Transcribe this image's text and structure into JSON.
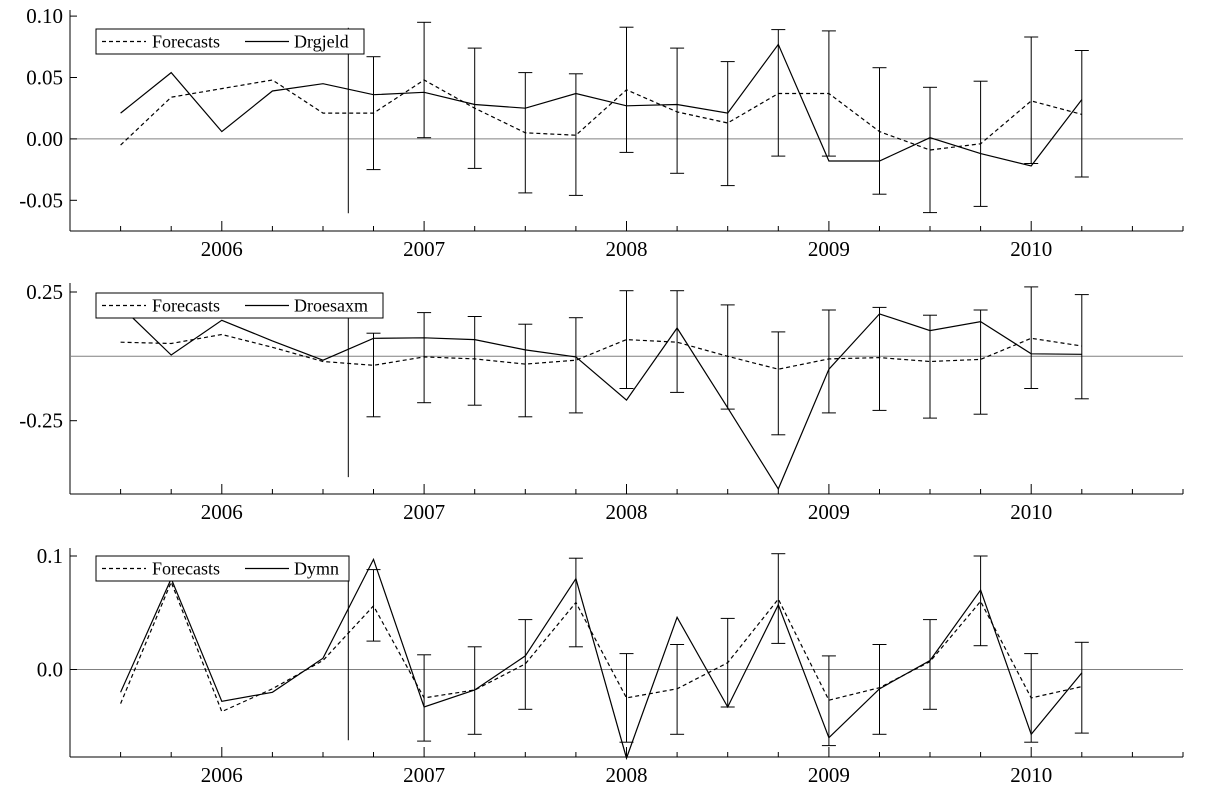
{
  "chart_data": [
    {
      "type": "line",
      "title": "",
      "xlabel": "",
      "ylabel": "",
      "xlim": [
        2005.25,
        2010.75
      ],
      "ylim": [
        -0.075,
        0.105
      ],
      "yticks": [
        0.1,
        0.05,
        0.0,
        -0.05
      ],
      "ytick_labels": [
        "0.10",
        "0.05",
        "0.00",
        "-0.05"
      ],
      "xticks": [
        2006,
        2007,
        2008,
        2009,
        2010
      ],
      "xtick_labels": [
        "2006",
        "2007",
        "2008",
        "2009",
        "2010"
      ],
      "zero_line": 0,
      "forecast_origin": 2006.625,
      "legend": {
        "position": "top-left",
        "entries": [
          "Forecasts",
          "Drgjeld"
        ]
      },
      "series": [
        {
          "name": "Forecasts",
          "style": "dashed",
          "x": [
            2005.5,
            2005.75,
            2006.0,
            2006.25,
            2006.5,
            2006.75,
            2007.0,
            2007.25,
            2007.5,
            2007.75,
            2008.0,
            2008.25,
            2008.5,
            2008.75,
            2009.0,
            2009.25,
            2009.5,
            2009.75,
            2010.0,
            2010.25
          ],
          "y": [
            -0.005,
            0.034,
            0.041,
            0.048,
            0.021,
            0.021,
            0.048,
            0.025,
            0.005,
            0.003,
            0.04,
            0.022,
            0.013,
            0.037,
            0.037,
            0.006,
            -0.009,
            -0.004,
            0.031,
            0.02
          ]
        },
        {
          "name": "Drgjeld",
          "style": "solid",
          "x": [
            2005.5,
            2005.75,
            2006.0,
            2006.25,
            2006.5,
            2006.75,
            2007.0,
            2007.25,
            2007.5,
            2007.75,
            2008.0,
            2008.25,
            2008.5,
            2008.75,
            2009.0,
            2009.25,
            2009.5,
            2009.75,
            2010.0,
            2010.25
          ],
          "y": [
            0.021,
            0.054,
            0.006,
            0.039,
            0.045,
            0.036,
            0.038,
            0.028,
            0.025,
            0.037,
            0.027,
            0.028,
            0.021,
            0.077,
            -0.018,
            -0.018,
            0.001,
            -0.012,
            -0.022,
            0.032
          ]
        }
      ],
      "error_bars": {
        "x": [
          2006.75,
          2007.0,
          2007.25,
          2007.5,
          2007.75,
          2008.0,
          2008.25,
          2008.5,
          2008.75,
          2009.0,
          2009.25,
          2009.5,
          2009.75,
          2010.0,
          2010.25
        ],
        "low": [
          -0.025,
          0.001,
          -0.024,
          -0.044,
          -0.046,
          -0.011,
          -0.028,
          -0.038,
          -0.014,
          -0.014,
          -0.045,
          -0.06,
          -0.055,
          -0.02,
          -0.031
        ],
        "high": [
          0.067,
          0.095,
          0.074,
          0.054,
          0.053,
          0.091,
          0.074,
          0.063,
          0.089,
          0.088,
          0.058,
          0.042,
          0.047,
          0.083,
          0.072
        ]
      }
    },
    {
      "type": "line",
      "title": "",
      "xlabel": "",
      "ylabel": "",
      "xlim": [
        2005.25,
        2010.75
      ],
      "ylim": [
        -0.535,
        0.285
      ],
      "yticks": [
        0.25,
        -0.25
      ],
      "ytick_labels": [
        "0.25",
        "-0.25"
      ],
      "xticks": [
        2006,
        2007,
        2008,
        2009,
        2010
      ],
      "xtick_labels": [
        "2006",
        "2007",
        "2008",
        "2009",
        "2010"
      ],
      "zero_line": 0,
      "forecast_origin": 2006.625,
      "legend": {
        "position": "top-left",
        "entries": [
          "Forecasts",
          "Droesaxm"
        ]
      },
      "series": [
        {
          "name": "Forecasts",
          "style": "dashed",
          "x": [
            2005.5,
            2005.75,
            2006.0,
            2006.25,
            2006.5,
            2006.75,
            2007.0,
            2007.25,
            2007.5,
            2007.75,
            2008.0,
            2008.25,
            2008.5,
            2008.75,
            2009.0,
            2009.25,
            2009.5,
            2009.75,
            2010.0,
            2010.25
          ],
          "y": [
            0.055,
            0.05,
            0.085,
            0.035,
            -0.02,
            -0.035,
            -0.002,
            -0.01,
            -0.03,
            -0.015,
            0.065,
            0.055,
            0.0,
            -0.05,
            -0.01,
            -0.005,
            -0.02,
            -0.012,
            0.07,
            0.04
          ]
        },
        {
          "name": "Droesaxm",
          "style": "solid",
          "x": [
            2005.5,
            2005.75,
            2006.0,
            2006.25,
            2006.5,
            2006.75,
            2007.0,
            2007.25,
            2007.5,
            2007.75,
            2008.0,
            2008.25,
            2008.5,
            2008.75,
            2009.0,
            2009.25,
            2009.5,
            2009.75,
            2010.0,
            2010.25
          ],
          "y": [
            0.195,
            0.005,
            0.14,
            0.06,
            -0.015,
            0.07,
            0.072,
            0.065,
            0.025,
            -0.002,
            -0.17,
            0.11,
            -0.2,
            -0.515,
            -0.05,
            0.165,
            0.1,
            0.135,
            0.01,
            0.008
          ]
        }
      ],
      "error_bars": {
        "x": [
          2006.75,
          2007.0,
          2007.25,
          2007.5,
          2007.75,
          2008.0,
          2008.25,
          2008.5,
          2008.75,
          2009.0,
          2009.25,
          2009.5,
          2009.75,
          2010.0,
          2010.25
        ],
        "low": [
          -0.235,
          -0.18,
          -0.19,
          -0.235,
          -0.22,
          -0.125,
          -0.14,
          -0.205,
          -0.305,
          -0.22,
          -0.21,
          -0.24,
          -0.225,
          -0.125,
          -0.165
        ],
        "high": [
          0.09,
          0.17,
          0.155,
          0.125,
          0.15,
          0.255,
          0.255,
          0.2,
          0.095,
          0.18,
          0.19,
          0.16,
          0.18,
          0.27,
          0.24
        ]
      }
    },
    {
      "type": "line",
      "title": "",
      "xlabel": "",
      "ylabel": "",
      "xlim": [
        2005.25,
        2010.75
      ],
      "ylim": [
        -0.077,
        0.107
      ],
      "yticks": [
        0.1,
        0.0
      ],
      "ytick_labels": [
        "0.1",
        "0.0"
      ],
      "xticks": [
        2006,
        2007,
        2008,
        2009,
        2010
      ],
      "xtick_labels": [
        "2006",
        "2007",
        "2008",
        "2009",
        "2010"
      ],
      "zero_line": 0,
      "forecast_origin": 2006.625,
      "legend": {
        "position": "top-left",
        "entries": [
          "Forecasts",
          "Dymn"
        ]
      },
      "series": [
        {
          "name": "Forecasts",
          "style": "dashed",
          "x": [
            2005.5,
            2005.75,
            2006.0,
            2006.25,
            2006.5,
            2006.75,
            2007.0,
            2007.25,
            2007.5,
            2007.75,
            2008.0,
            2008.25,
            2008.5,
            2008.75,
            2009.0,
            2009.25,
            2009.5,
            2009.75,
            2010.0,
            2010.25
          ],
          "y": [
            -0.03,
            0.077,
            -0.037,
            -0.017,
            0.008,
            0.056,
            -0.025,
            -0.018,
            0.005,
            0.059,
            -0.025,
            -0.017,
            0.006,
            0.062,
            -0.027,
            -0.016,
            0.007,
            0.06,
            -0.025,
            -0.015
          ]
        },
        {
          "name": "Dymn",
          "style": "solid",
          "x": [
            2005.5,
            2005.75,
            2006.0,
            2006.25,
            2006.5,
            2006.75,
            2007.0,
            2007.25,
            2007.5,
            2007.75,
            2008.0,
            2008.25,
            2008.5,
            2008.75,
            2009.0,
            2009.25,
            2009.5,
            2009.75,
            2010.0,
            2010.25
          ],
          "y": [
            -0.02,
            0.08,
            -0.028,
            -0.02,
            0.01,
            0.097,
            -0.033,
            -0.018,
            0.012,
            0.08,
            -0.078,
            0.046,
            -0.033,
            0.057,
            -0.06,
            -0.017,
            0.008,
            0.07,
            -0.057,
            -0.003
          ]
        }
      ],
      "error_bars": {
        "x": [
          2006.75,
          2007.0,
          2007.25,
          2007.5,
          2007.75,
          2008.0,
          2008.25,
          2008.5,
          2008.75,
          2009.0,
          2009.25,
          2009.5,
          2009.75,
          2010.0,
          2010.25
        ],
        "low": [
          0.025,
          -0.063,
          -0.057,
          -0.035,
          0.02,
          -0.064,
          -0.057,
          -0.033,
          0.023,
          -0.067,
          -0.057,
          -0.035,
          0.021,
          -0.064,
          -0.056
        ],
        "high": [
          0.088,
          0.013,
          0.02,
          0.044,
          0.098,
          0.014,
          0.022,
          0.045,
          0.102,
          0.012,
          0.022,
          0.044,
          0.1,
          0.014,
          0.024
        ]
      }
    }
  ]
}
